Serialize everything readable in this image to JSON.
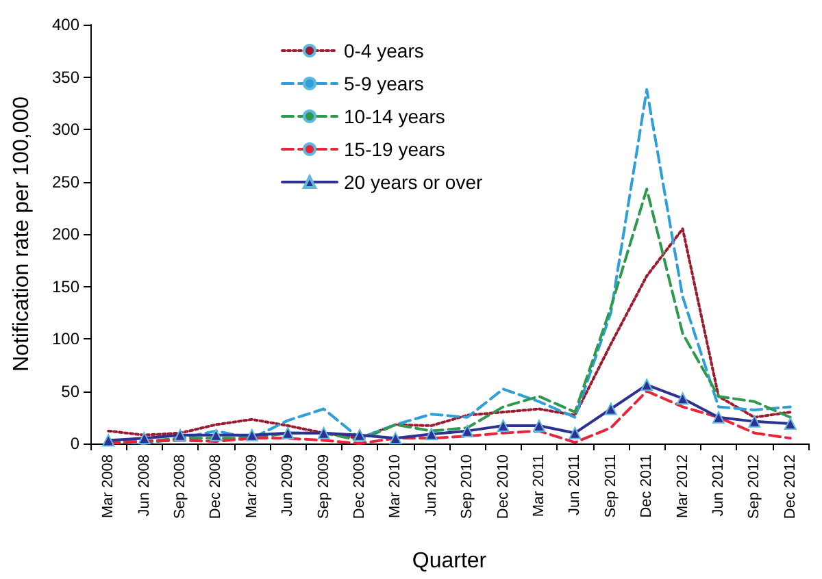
{
  "chart_data": {
    "type": "line",
    "xlabel": "Quarter",
    "ylabel": "Notification rate per 100,000",
    "categories": [
      "Mar 2008",
      "Jun 2008",
      "Sep 2008",
      "Dec 2008",
      "Mar 2009",
      "Jun 2009",
      "Sep 2009",
      "Dec 2009",
      "Mar 2010",
      "Jun 2010",
      "Sep 2010",
      "Dec 2010",
      "Mar 2011",
      "Jun 2011",
      "Sep 2011",
      "Dec 2011",
      "Mar 2012",
      "Jun 2012",
      "Sep 2012",
      "Dec 2012"
    ],
    "series": [
      {
        "name": "0-4 years",
        "color": "#9b1b30",
        "line_style": "dotted",
        "marker": "none",
        "values": [
          12,
          8,
          10,
          18,
          23,
          17,
          10,
          5,
          18,
          17,
          27,
          30,
          33,
          27,
          95,
          160,
          205,
          45,
          25,
          30
        ]
      },
      {
        "name": "5-9 years",
        "color": "#2e9fd8",
        "line_style": "dashed",
        "marker": "none",
        "values": [
          2,
          0,
          5,
          12,
          5,
          22,
          33,
          5,
          18,
          28,
          25,
          52,
          40,
          25,
          125,
          338,
          140,
          35,
          32,
          35
        ]
      },
      {
        "name": "10-14 years",
        "color": "#2f9a4f",
        "line_style": "dashed",
        "marker": "none",
        "values": [
          3,
          2,
          5,
          5,
          5,
          10,
          10,
          3,
          18,
          12,
          15,
          35,
          45,
          30,
          130,
          243,
          105,
          45,
          40,
          25
        ]
      },
      {
        "name": "15-19 years",
        "color": "#e8263b",
        "line_style": "dashed",
        "marker": "none",
        "values": [
          0,
          2,
          3,
          2,
          5,
          5,
          3,
          0,
          5,
          5,
          7,
          10,
          12,
          1,
          15,
          50,
          35,
          25,
          10,
          5
        ]
      },
      {
        "name": "20 years or over",
        "color": "#2e3192",
        "line_style": "solid",
        "marker": "triangle",
        "values": [
          3,
          5,
          8,
          8,
          8,
          10,
          10,
          8,
          5,
          9,
          12,
          17,
          17,
          10,
          33,
          56,
          43,
          25,
          21,
          19
        ]
      }
    ],
    "ylim": [
      0,
      400
    ],
    "yticks": [
      0,
      50,
      100,
      150,
      200,
      250,
      300,
      350,
      400
    ],
    "grid": false,
    "legend": "top"
  }
}
